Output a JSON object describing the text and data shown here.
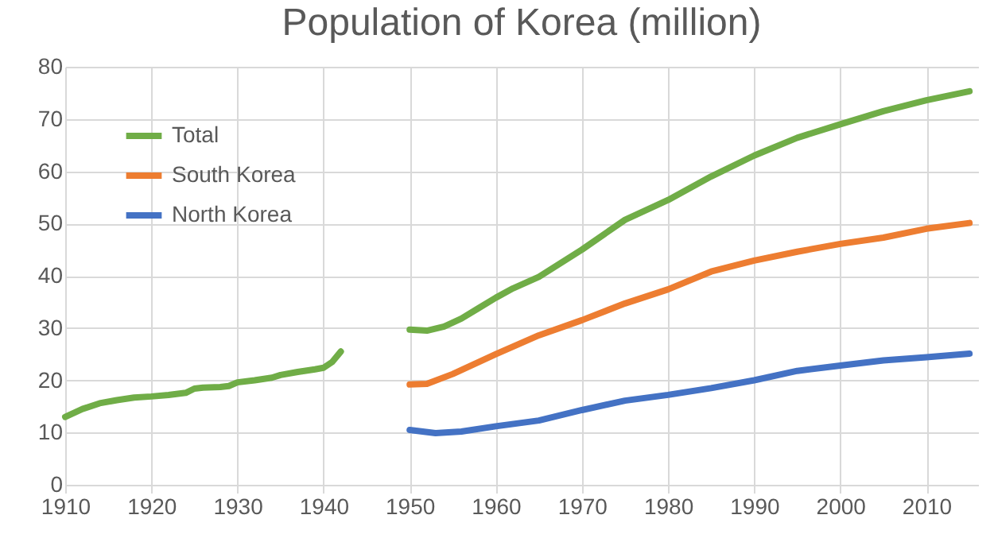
{
  "chart_data": {
    "type": "line",
    "title": "Population of Korea (million)",
    "xlim": [
      1910,
      2016
    ],
    "ylim": [
      0,
      80
    ],
    "xticks": [
      1910,
      1920,
      1930,
      1940,
      1950,
      1960,
      1970,
      1980,
      1990,
      2000,
      2010
    ],
    "yticks": [
      0,
      10,
      20,
      30,
      40,
      50,
      60,
      70,
      80
    ],
    "grid": true,
    "legend": "top left",
    "marker": "none",
    "series": [
      {
        "name": "Total",
        "color": "#70ad47",
        "x": [
          1910,
          1912,
          1914,
          1916,
          1918,
          1920,
          1922,
          1924,
          1925,
          1926,
          1928,
          1929,
          1930,
          1932,
          1934,
          1935,
          1937,
          1939,
          1940,
          1941,
          1942,
          1946,
          1950,
          1952,
          1954,
          1956,
          1958,
          1960,
          1962,
          1965,
          1970,
          1975,
          1980,
          1985,
          1990,
          1995,
          2000,
          2005,
          2010,
          2015
        ],
        "values": [
          13,
          14.5,
          15.6,
          16.2,
          16.7,
          16.9,
          17.2,
          17.6,
          18.4,
          18.6,
          18.7,
          18.9,
          19.6,
          20,
          20.5,
          21,
          21.6,
          22.1,
          22.4,
          23.5,
          25.5,
          null,
          29.7,
          29.5,
          30.3,
          31.8,
          33.8,
          35.8,
          37.6,
          39.8,
          45,
          50.7,
          54.5,
          59,
          63,
          66.4,
          69,
          71.5,
          73.6,
          75.3
        ]
      },
      {
        "name": "South Korea",
        "color": "#ed7d31",
        "x": [
          1950,
          1952,
          1955,
          1960,
          1965,
          1970,
          1975,
          1980,
          1985,
          1990,
          1995,
          2000,
          2005,
          2010,
          2015
        ],
        "values": [
          19.2,
          19.3,
          21.2,
          25,
          28.6,
          31.5,
          34.7,
          37.4,
          40.8,
          42.9,
          44.6,
          46.1,
          47.3,
          49,
          50.1
        ]
      },
      {
        "name": "North Korea",
        "color": "#4472c4",
        "x": [
          1950,
          1953,
          1956,
          1960,
          1965,
          1970,
          1975,
          1980,
          1985,
          1990,
          1995,
          2000,
          2005,
          2010,
          2015
        ],
        "values": [
          10.5,
          9.9,
          10.2,
          11.2,
          12.3,
          14.3,
          16.1,
          17.2,
          18.5,
          20,
          21.8,
          22.8,
          23.8,
          24.4,
          25.1
        ]
      }
    ]
  }
}
